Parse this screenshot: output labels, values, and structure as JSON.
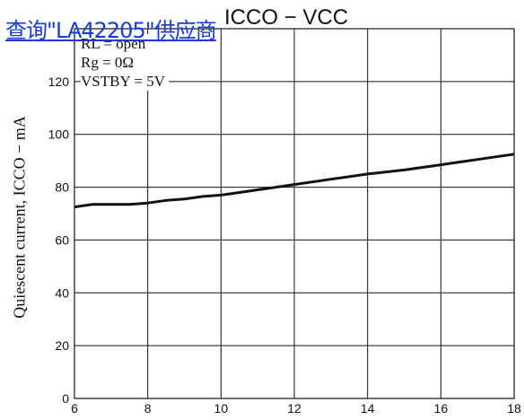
{
  "title": "ICCO − VCC",
  "link_text": "查询\"LA42205\"供应商",
  "ylabel": "Quiescent current, ICCO − mA",
  "conditions": [
    "RL = open",
    "Rg = 0Ω",
    "VSTBY = 5V"
  ],
  "chart_data": {
    "type": "line",
    "title": "ICCO − VCC",
    "xlabel": "",
    "ylabel": "Quiescent current, ICCO − mA",
    "xlim": [
      6,
      18
    ],
    "ylim": [
      0,
      140
    ],
    "xticks": [
      6,
      8,
      10,
      12,
      14,
      16,
      18
    ],
    "yticks": [
      0,
      20,
      40,
      60,
      80,
      100,
      120
    ],
    "grid": true,
    "series": [
      {
        "x": [
          6.0,
          6.5,
          7.0,
          7.5,
          8.0,
          8.5,
          9.0,
          9.5,
          10.0,
          10.5,
          11.0,
          11.5,
          12.0,
          13.0,
          14.0,
          15.0,
          16.0,
          17.0,
          18.0
        ],
        "y": [
          72.5,
          73.5,
          73.5,
          73.5,
          74.0,
          75.0,
          75.5,
          76.5,
          77.0,
          78.0,
          79.0,
          80.0,
          81.0,
          83.0,
          85.0,
          86.5,
          88.5,
          90.5,
          92.5
        ]
      }
    ]
  }
}
